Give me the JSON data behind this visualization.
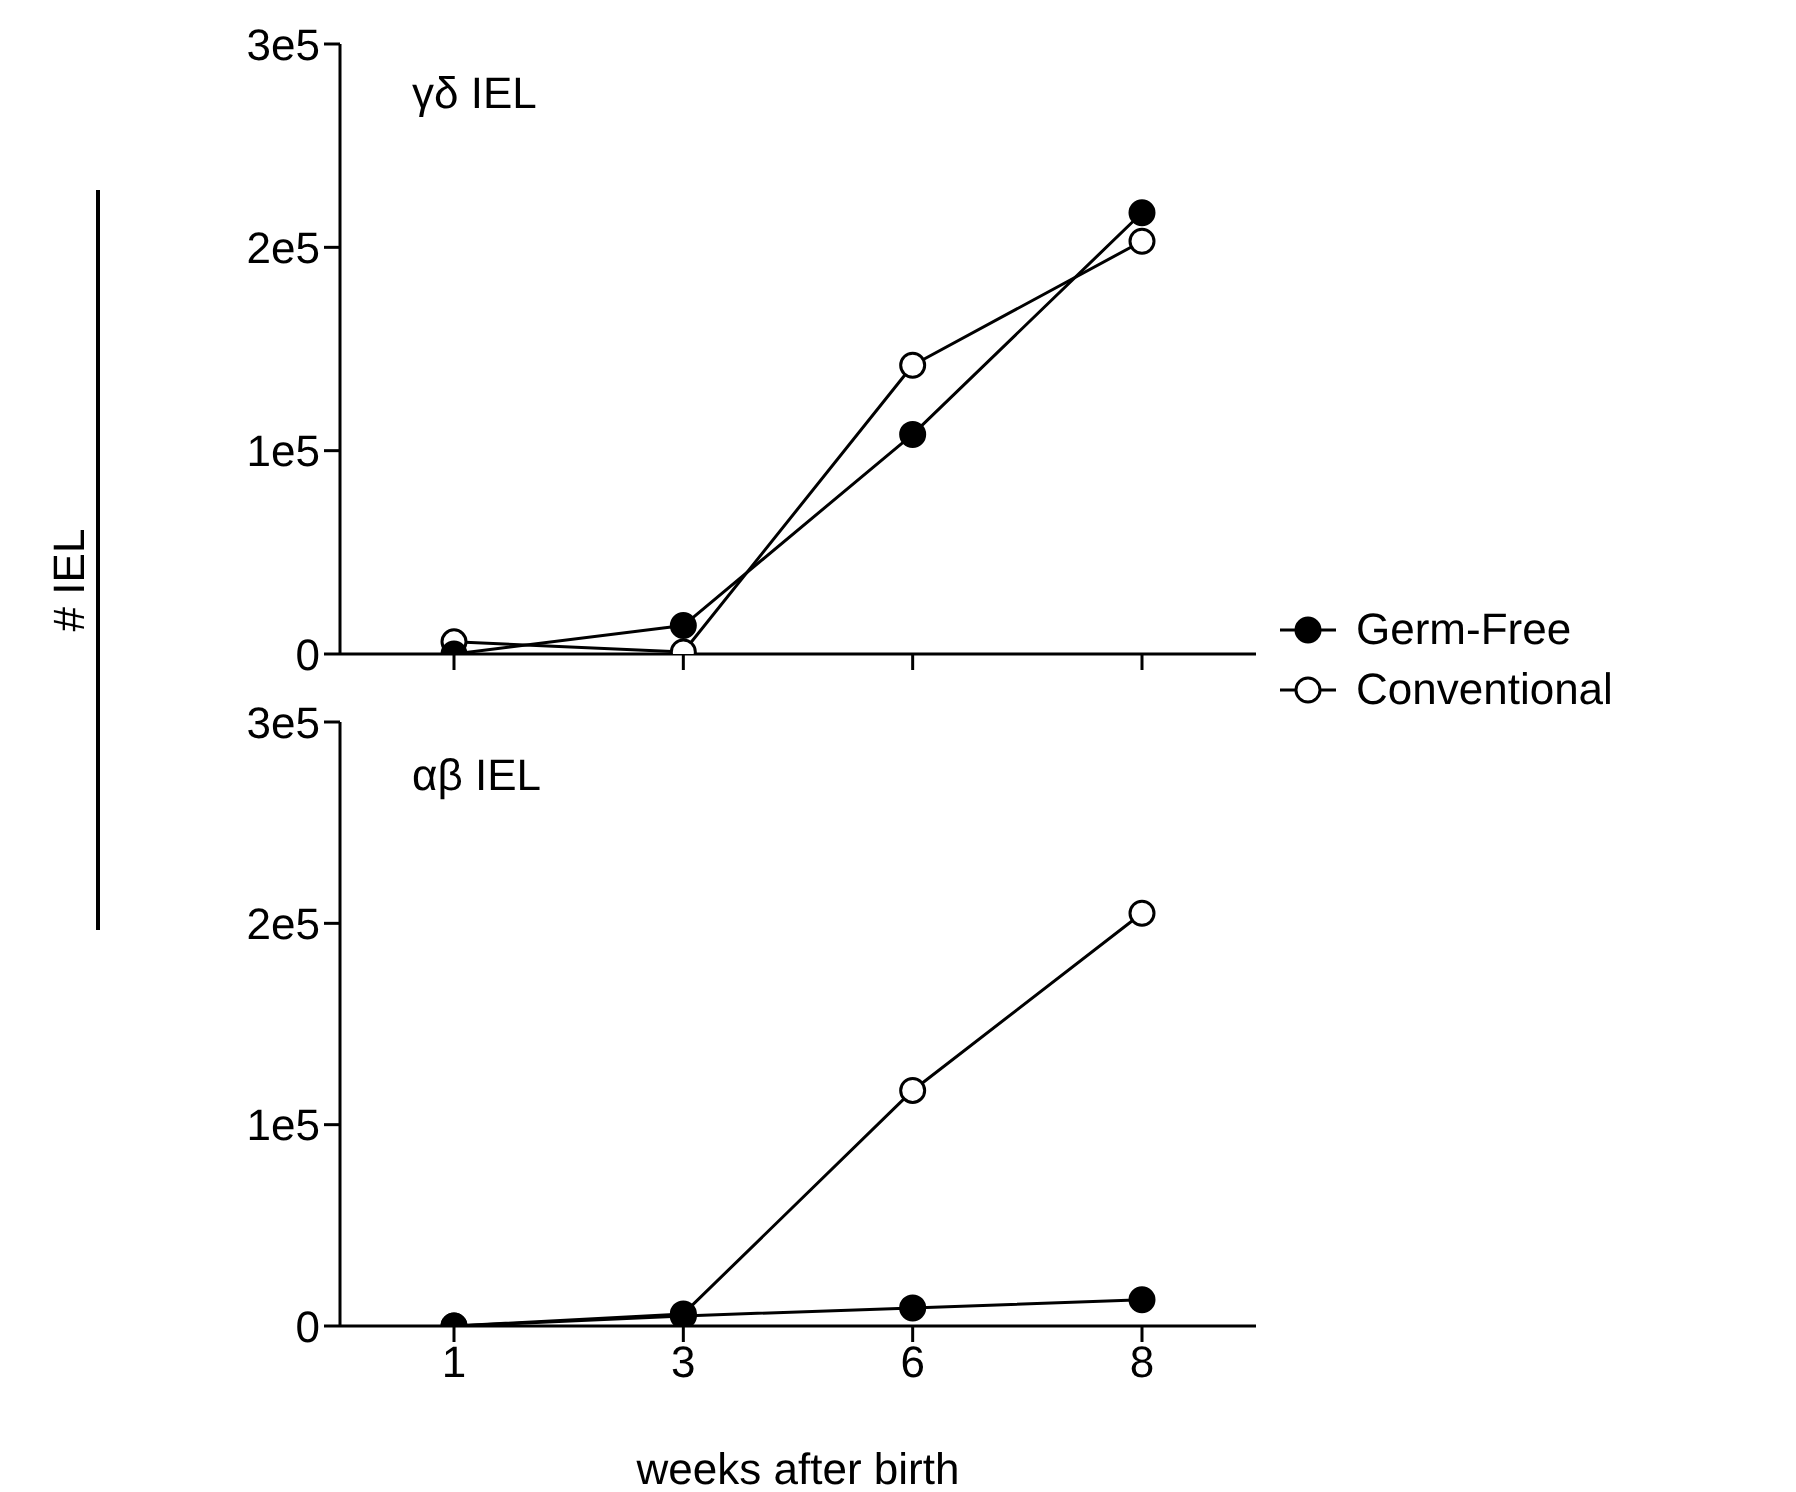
{
  "chart_data": [
    {
      "type": "line",
      "ylabel": "# IEL",
      "annotations": [
        "γδ IEL"
      ],
      "categories": [
        "1",
        "3",
        "6",
        "8"
      ],
      "series": [
        {
          "name": "Germ-Free",
          "color": "#000000",
          "colors": [
            "#000000",
            "#000000",
            "#000000",
            "#000000"
          ],
          "values": [
            0,
            14000,
            108000,
            217000
          ]
        },
        {
          "name": "Conventional",
          "color": "#000000",
          "colors": [
            "#ffffff",
            "#ffffff",
            "#ffffff",
            "#ffffff"
          ],
          "values": [
            6000,
            1000,
            142000,
            203000
          ]
        }
      ],
      "ylim": [
        0,
        300000
      ],
      "yticks": [
        {
          "value": 0,
          "label": "0"
        },
        {
          "value": 100000,
          "label": "1e5"
        },
        {
          "value": 200000,
          "label": "2e5"
        },
        {
          "value": 300000,
          "label": "3e5"
        }
      ],
      "tick_labels": "y",
      "marker": "circle",
      "line_style": "solid",
      "grid": false,
      "legend": "right"
    },
    {
      "type": "line",
      "xlabel": "weeks after birth",
      "annotations": [
        "αβ IEL"
      ],
      "categories": [
        "1",
        "3",
        "6",
        "8"
      ],
      "series": [
        {
          "color": "#000000",
          "colors": [
            "#000000",
            "#000000",
            "#000000",
            "#000000"
          ],
          "values": [
            0,
            5000,
            9000,
            13000
          ]
        },
        {
          "color": "#000000",
          "colors": [
            "#ffffff",
            "#ffffff",
            "#ffffff",
            "#ffffff"
          ],
          "values": [
            0,
            6000,
            117000,
            205000
          ]
        }
      ],
      "ylim": [
        0,
        300000
      ],
      "yticks": [
        {
          "value": 0,
          "label": "0"
        },
        {
          "value": 100000,
          "label": "1e5"
        },
        {
          "value": 200000,
          "label": "2e5"
        },
        {
          "value": 300000,
          "label": "3e5"
        }
      ],
      "marker": "circle",
      "line_style": "solid",
      "grid": false,
      "legend": false
    }
  ]
}
